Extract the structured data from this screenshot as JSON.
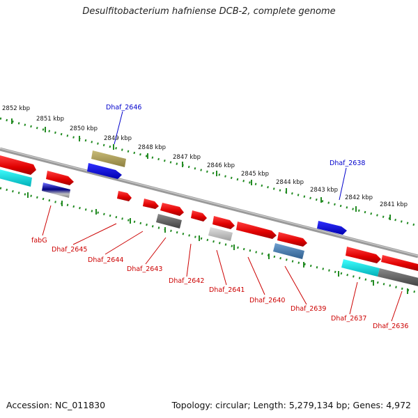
{
  "title": "Desulfitobacterium hafniense DCB-2, complete genome",
  "footer": {
    "accession": "Accession: NC_011830",
    "summary": "Topology: circular; Length: 5,279,134 bp; Genes: 4,972"
  },
  "kbp_labels": [
    "2852 kbp",
    "2851 kbp",
    "2850 kbp",
    "2849 kbp",
    "2848 kbp",
    "2847 kbp",
    "2846 kbp",
    "2845 kbp",
    "2844 kbp",
    "2843 kbp",
    "2842 kbp",
    "2841 kbp"
  ],
  "genes_top": [
    "Dhaf_2646",
    "Dhaf_2638"
  ],
  "genes_bottom": [
    "fabG",
    "Dhaf_2645",
    "Dhaf_2644",
    "Dhaf_2643",
    "Dhaf_2642",
    "Dhaf_2641",
    "Dhaf_2640",
    "Dhaf_2639",
    "Dhaf_2637",
    "Dhaf_2636"
  ],
  "colors": {
    "top_label": "#0000cc",
    "bottom_label": "#cc0000",
    "tick": "#228b22",
    "backbone": "#8a8a8a"
  }
}
